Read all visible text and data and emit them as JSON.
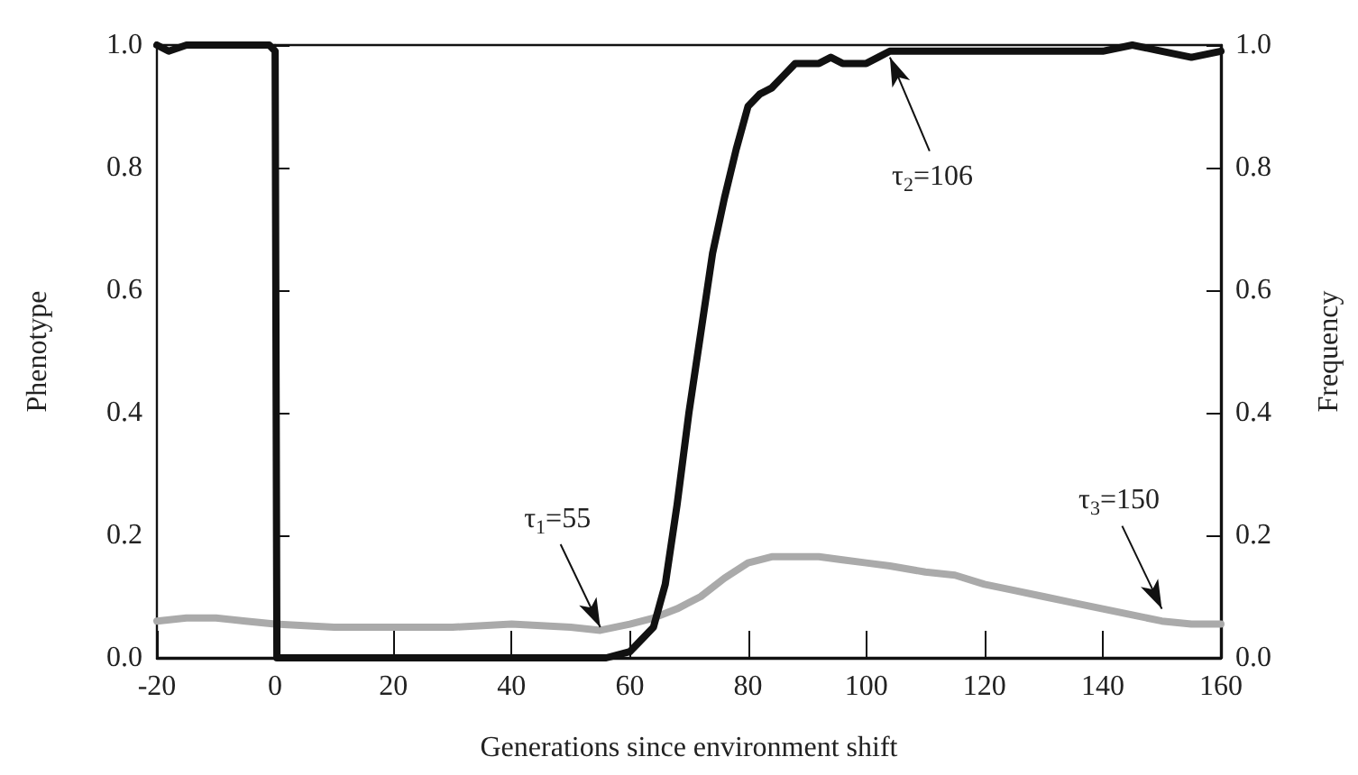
{
  "chart_data": {
    "type": "line",
    "xlabel": "Generations since environment shift",
    "ylabel": "Phenotype",
    "y2label": "Frequency",
    "xlim": [
      -20,
      160
    ],
    "xticks": [
      -20,
      0,
      20,
      40,
      60,
      80,
      100,
      120,
      140,
      160
    ],
    "ylim": [
      0,
      1
    ],
    "yticks": [
      {
        "value": 0,
        "label": "0.0"
      },
      0.2,
      0.4,
      0.6,
      0.8,
      {
        "value": 1,
        "label": "1.0"
      }
    ],
    "y2lim": [
      0,
      1
    ],
    "y2ticks": [
      {
        "value": 0,
        "label": "0.0"
      },
      0.2,
      0.4,
      0.6,
      0.8,
      {
        "value": 1,
        "label": "1.0"
      }
    ],
    "marker": "none",
    "line_style": "solid",
    "series": [
      {
        "color": "#111111",
        "x": [
          -20,
          -18,
          -15,
          -10,
          -5,
          -1,
          0,
          0.3,
          10,
          20,
          30,
          40,
          50,
          56,
          58,
          60,
          62,
          64,
          66,
          68,
          70,
          72,
          74,
          76,
          78,
          80,
          82,
          84,
          86,
          88,
          90,
          92,
          94,
          96,
          98,
          100,
          102,
          104,
          106,
          110,
          115,
          120,
          125,
          130,
          135,
          140,
          145,
          150,
          155,
          160
        ],
        "values": [
          1.0,
          0.99,
          1.0,
          1.0,
          1.0,
          1.0,
          0.99,
          0.0,
          0.0,
          0.0,
          0.0,
          0.0,
          0.0,
          0.0,
          0.005,
          0.01,
          0.03,
          0.05,
          0.12,
          0.25,
          0.4,
          0.53,
          0.66,
          0.75,
          0.83,
          0.9,
          0.92,
          0.93,
          0.95,
          0.97,
          0.97,
          0.97,
          0.98,
          0.97,
          0.97,
          0.97,
          0.98,
          0.99,
          0.99,
          0.99,
          0.99,
          0.99,
          0.99,
          0.99,
          0.99,
          0.99,
          1.0,
          0.99,
          0.98,
          0.99
        ]
      },
      {
        "color": "#aaaaaa",
        "axis": "y2",
        "x": [
          -20,
          -15,
          -10,
          -5,
          0,
          10,
          20,
          30,
          40,
          50,
          55,
          60,
          64,
          68,
          72,
          76,
          80,
          84,
          88,
          92,
          96,
          100,
          104,
          110,
          115,
          120,
          125,
          130,
          135,
          140,
          145,
          150,
          155,
          160
        ],
        "values": [
          0.06,
          0.065,
          0.065,
          0.06,
          0.055,
          0.05,
          0.05,
          0.05,
          0.055,
          0.05,
          0.045,
          0.055,
          0.065,
          0.08,
          0.1,
          0.13,
          0.155,
          0.165,
          0.165,
          0.165,
          0.16,
          0.155,
          0.15,
          0.14,
          0.135,
          0.12,
          0.11,
          0.1,
          0.09,
          0.08,
          0.07,
          0.06,
          0.055,
          0.055
        ]
      }
    ],
    "annotations": [
      {
        "text": "τ$_{1}$=55",
        "x": 55,
        "y": 0.05
      },
      {
        "text": "τ$_{2}$=106",
        "x": 104,
        "y": 0.98
      },
      {
        "text": "τ$_{3}$=150",
        "x": 150,
        "y": 0.08
      }
    ]
  }
}
